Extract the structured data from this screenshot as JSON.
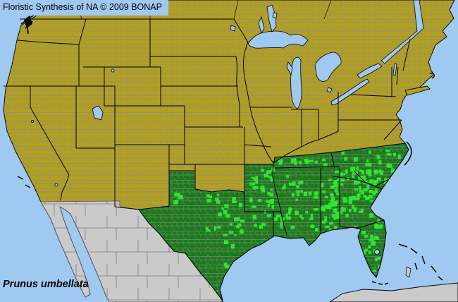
{
  "header": {
    "title": "Floristic Synthesis of NA © 2009 BONAP"
  },
  "species": {
    "name": "Prunus umbellata"
  },
  "colors": {
    "ocean": "#9FC9F0",
    "water": "#9FC9F0",
    "absent": "#B3A01E",
    "state_present": "#1B7A1B",
    "county_present": "#2FE52F",
    "outside_na": "#CACACA",
    "county_border": "#8A8A8A",
    "state_border": "#000000",
    "title_text": "#000000"
  }
}
